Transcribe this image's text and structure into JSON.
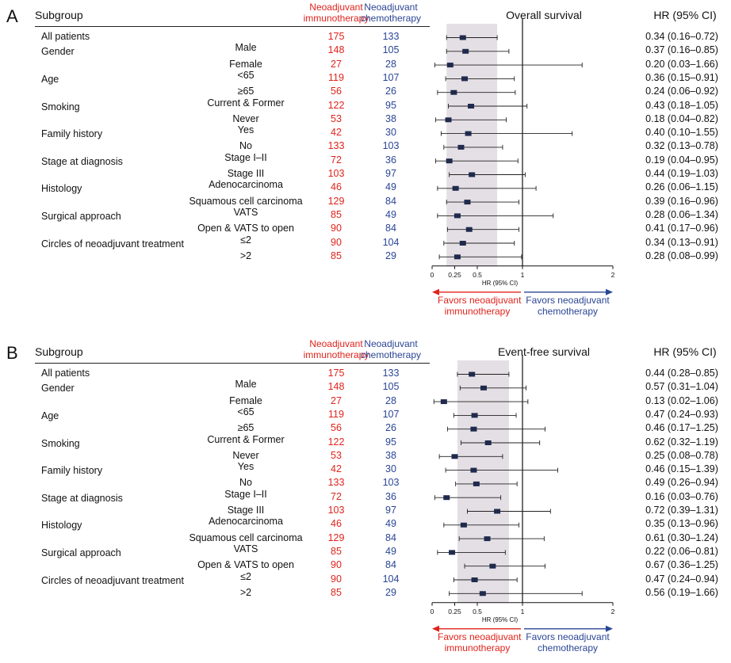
{
  "headers": {
    "subgroup": "Subgroup",
    "immuno_label": [
      "Neoadjuvant",
      "immunotherapy"
    ],
    "chemo_label": [
      "Neoadjuvant",
      "chemotherapy"
    ],
    "hr_label": "HR (95% CI)",
    "axis_label": "HR (95% CI)",
    "favors_immuno": [
      "Favors neoadjuvant",
      "immunotherapy"
    ],
    "favors_chemo": [
      "Favors neoadjuvant",
      "chemotherapy"
    ]
  },
  "colors": {
    "immuno": "#e0231c",
    "chemo": "#2a4595",
    "shade": "#e4dfe4",
    "marker": "#1f2a4d"
  },
  "rows": [
    {
      "group": "All patients",
      "sub": ""
    },
    {
      "group": "Gender",
      "sub": "Male"
    },
    {
      "group": "",
      "sub": "Female"
    },
    {
      "group": "Age",
      "sub": "<65"
    },
    {
      "group": "",
      "sub": "≥65"
    },
    {
      "group": "Smoking",
      "sub": "Current & Former"
    },
    {
      "group": "",
      "sub": "Never"
    },
    {
      "group": "Family history",
      "sub": "Yes"
    },
    {
      "group": "",
      "sub": "No"
    },
    {
      "group": "Stage at diagnosis",
      "sub": "Stage I–II"
    },
    {
      "group": "",
      "sub": "Stage III"
    },
    {
      "group": "Histology",
      "sub": "Adenocarcinoma"
    },
    {
      "group": "",
      "sub": "Squamous cell carcinoma"
    },
    {
      "group": "Surgical approach",
      "sub": "VATS"
    },
    {
      "group": "",
      "sub": "Open & VATS to open"
    },
    {
      "group": "Circles of neoadjuvant treatment",
      "sub": "≤2"
    },
    {
      "group": "",
      "sub": ">2"
    }
  ],
  "n_immuno": [
    175,
    148,
    27,
    119,
    56,
    122,
    53,
    42,
    133,
    72,
    103,
    46,
    129,
    85,
    90,
    90,
    85
  ],
  "n_chemo": [
    133,
    105,
    28,
    107,
    26,
    95,
    38,
    30,
    103,
    36,
    97,
    49,
    84,
    49,
    84,
    104,
    29
  ],
  "chart_data": [
    {
      "panel": "A",
      "type": "forest",
      "title": "Overall survival",
      "xlabel": "HR (95% CI)",
      "xlim": [
        0,
        2
      ],
      "xticks": [
        0,
        0.25,
        0.5,
        1,
        2
      ],
      "xticklabels": [
        "0",
        "0.25",
        "0.5",
        "1",
        "2"
      ],
      "reference_line": 1,
      "shaded_ci": [
        0.16,
        0.72
      ],
      "hr": [
        0.34,
        0.37,
        0.2,
        0.36,
        0.24,
        0.43,
        0.18,
        0.4,
        0.32,
        0.19,
        0.44,
        0.26,
        0.39,
        0.28,
        0.41,
        0.34,
        0.28
      ],
      "lower": [
        0.16,
        0.16,
        0.03,
        0.15,
        0.06,
        0.18,
        0.04,
        0.1,
        0.13,
        0.04,
        0.19,
        0.06,
        0.16,
        0.06,
        0.17,
        0.13,
        0.08
      ],
      "upper": [
        0.72,
        0.85,
        1.66,
        0.91,
        0.92,
        1.05,
        0.82,
        1.55,
        0.78,
        0.95,
        1.03,
        1.15,
        0.96,
        1.34,
        0.96,
        0.91,
        0.99
      ],
      "labels": [
        "0.34 (0.16–0.72)",
        "0.37 (0.16–0.85)",
        "0.20 (0.03–1.66)",
        "0.36 (0.15–0.91)",
        "0.24 (0.06–0.92)",
        "0.43 (0.18–1.05)",
        "0.18 (0.04–0.82)",
        "0.40 (0.10–1.55)",
        "0.32 (0.13–0.78)",
        "0.19 (0.04–0.95)",
        "0.44 (0.19–1.03)",
        "0.26 (0.06–1.15)",
        "0.39 (0.16–0.96)",
        "0.28 (0.06–1.34)",
        "0.41 (0.17–0.96)",
        "0.34 (0.13–0.91)",
        "0.28 (0.08–0.99)"
      ]
    },
    {
      "panel": "B",
      "type": "forest",
      "title": "Event-free survival",
      "xlabel": "HR (95% CI)",
      "xlim": [
        0,
        2
      ],
      "xticks": [
        0,
        0.25,
        0.5,
        1,
        2
      ],
      "xticklabels": [
        "0",
        "0.25",
        "0.5",
        "1",
        "2"
      ],
      "reference_line": 1,
      "shaded_ci": [
        0.28,
        0.85
      ],
      "hr": [
        0.44,
        0.57,
        0.13,
        0.47,
        0.46,
        0.62,
        0.25,
        0.46,
        0.49,
        0.16,
        0.72,
        0.35,
        0.61,
        0.22,
        0.67,
        0.47,
        0.56
      ],
      "lower": [
        0.28,
        0.31,
        0.02,
        0.24,
        0.17,
        0.32,
        0.08,
        0.15,
        0.26,
        0.03,
        0.39,
        0.13,
        0.3,
        0.06,
        0.36,
        0.24,
        0.19
      ],
      "upper": [
        0.85,
        1.04,
        1.06,
        0.93,
        1.25,
        1.19,
        0.78,
        1.39,
        0.94,
        0.76,
        1.31,
        0.96,
        1.24,
        0.81,
        1.25,
        0.94,
        1.66
      ],
      "labels": [
        "0.44 (0.28–0.85)",
        "0.57 (0.31–1.04)",
        "0.13 (0.02–1.06)",
        "0.47 (0.24–0.93)",
        "0.46 (0.17–1.25)",
        "0.62 (0.32–1.19)",
        "0.25 (0.08–0.78)",
        "0.46 (0.15–1.39)",
        "0.49 (0.26–0.94)",
        "0.16 (0.03–0.76)",
        "0.72 (0.39–1.31)",
        "0.35 (0.13–0.96)",
        "0.61 (0.30–1.24)",
        "0.22 (0.06–0.81)",
        "0.67 (0.36–1.25)",
        "0.47 (0.24–0.94)",
        "0.56 (0.19–1.66)"
      ]
    }
  ]
}
